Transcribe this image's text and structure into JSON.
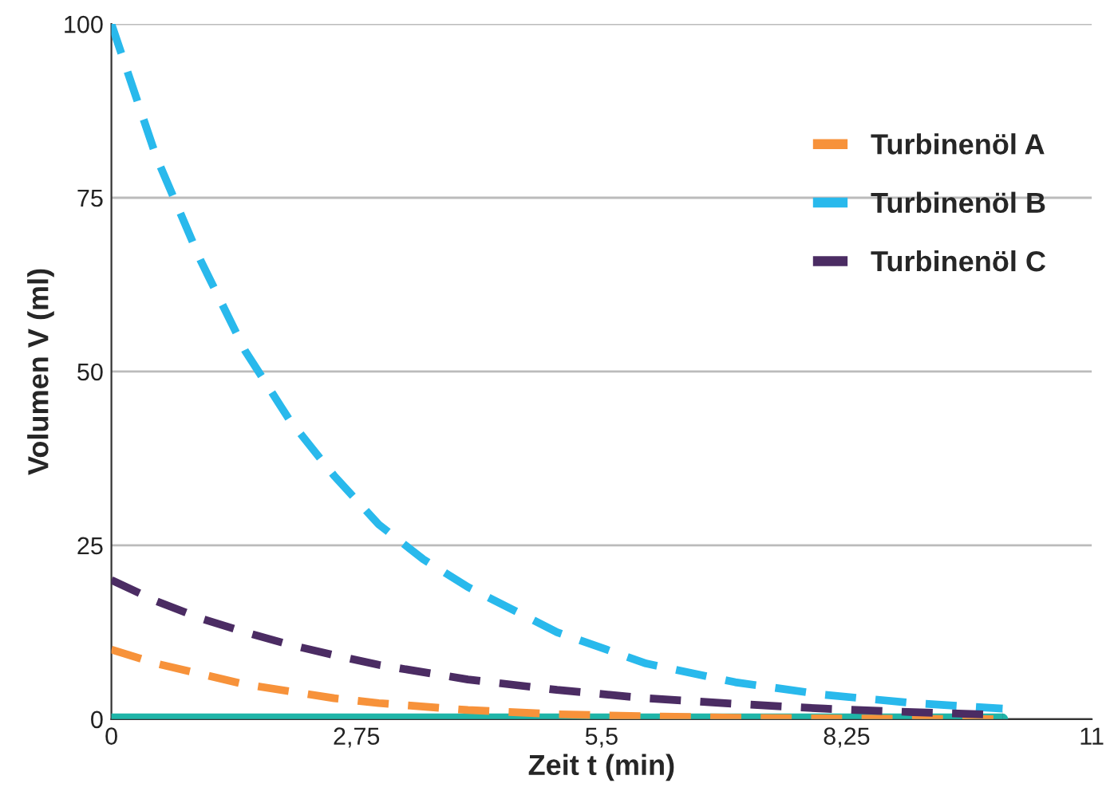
{
  "chart_data": {
    "type": "line",
    "xlabel": "Zeit t (min)",
    "ylabel": "Volumen V (ml)",
    "xlim": [
      0,
      11
    ],
    "xticks": [
      0,
      {
        "value": 2.75,
        "label": "2,75"
      },
      {
        "value": 5.5,
        "label": "5,5"
      },
      {
        "value": 8.25,
        "label": "8,25"
      },
      11
    ],
    "ylim": [
      0,
      100
    ],
    "yticks": [
      0,
      25,
      50,
      75,
      100
    ],
    "grid": "y",
    "legend": "top right",
    "marker": "none",
    "series": [
      {
        "color": "#1fb5a8",
        "line_style": "solid",
        "x": [
          0,
          10
        ],
        "values": [
          0,
          0
        ]
      },
      {
        "name": "Turbinenöl A",
        "color": "#f7923a",
        "line_style": "dashed",
        "x": [
          0,
          0.5,
          1,
          1.5,
          2,
          2.5,
          3,
          4,
          5,
          6,
          7,
          8,
          10
        ],
        "values": [
          10,
          8,
          6.5,
          5,
          4,
          3,
          2.3,
          1.3,
          0.7,
          0.4,
          0.2,
          0.1,
          0
        ]
      },
      {
        "name": "Turbinenöl B",
        "color": "#29b9ec",
        "line_style": "dashed",
        "x": [
          0,
          0.5,
          1,
          1.5,
          2,
          2.5,
          3,
          3.5,
          4,
          5,
          6,
          7,
          8,
          9,
          10
        ],
        "values": [
          100,
          81,
          66,
          53,
          43,
          35,
          28,
          23,
          19,
          12.5,
          8,
          5.3,
          3.5,
          2.3,
          1.5
        ]
      },
      {
        "name": "Turbinenöl C",
        "color": "#4b2c63",
        "line_style": "dashed",
        "x": [
          0,
          0.5,
          1,
          1.5,
          2,
          2.5,
          3,
          4,
          5,
          6,
          7,
          8,
          9,
          10
        ],
        "values": [
          20,
          17,
          14.5,
          12.5,
          10.7,
          9.2,
          7.8,
          5.7,
          4.2,
          3,
          2.2,
          1.5,
          1,
          0.6
        ]
      }
    ]
  }
}
